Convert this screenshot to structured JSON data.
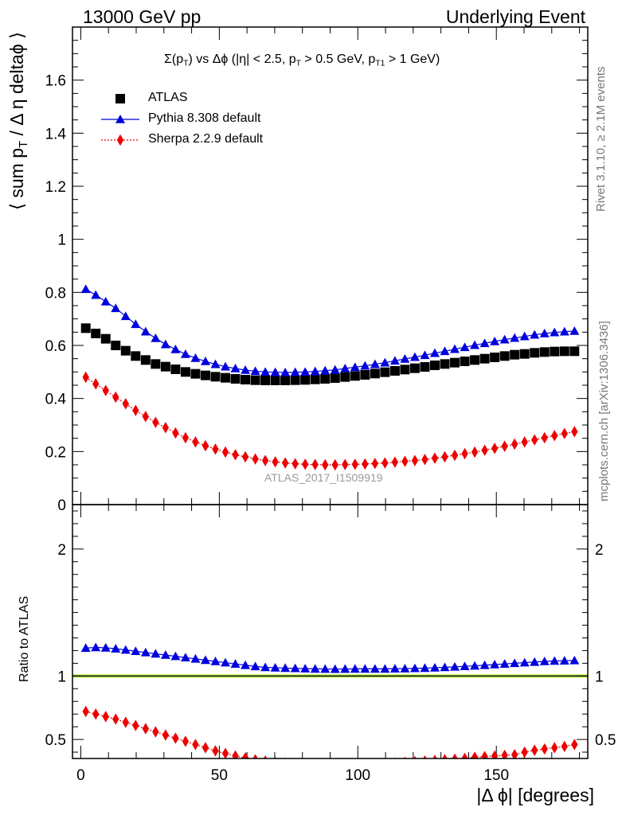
{
  "header": {
    "left": "13000 GeV pp",
    "right": "Underlying Event"
  },
  "side_labels": {
    "rivet": "Rivet 3.1.10, ≥ 2.1M events",
    "mcplots": "mcplots.cern.ch [arXiv:1306.3436]"
  },
  "watermark": "ATLAS_2017_I1509919",
  "upper_ylabel": {
    "main": "⟨ sum p",
    "sub": "T",
    "rest": " / Δ η deltaϕ ⟩"
  },
  "title": {
    "a": "Σ(p",
    "a_sub": "T",
    "b": ") vs Δϕ (|η| < 2.5, p",
    "b_sub": "T",
    "c": " > 0.5 GeV, p",
    "c_sub": "T1",
    "d": " > 1 GeV)"
  },
  "lower_ylabel": "Ratio to ATLAS",
  "xlabel": "|Δ ϕ| [degrees]",
  "chart_data": [
    {
      "type": "scatter",
      "xlim": [
        -3,
        183
      ],
      "ylim": [
        0,
        1.8
      ],
      "yticks": [
        {
          "v": 0,
          "label": "0"
        },
        {
          "v": 0.2,
          "label": "0.2"
        },
        {
          "v": 0.4,
          "label": "0.4"
        },
        {
          "v": 0.6,
          "label": "0.6"
        },
        {
          "v": 0.8,
          "label": "0.8"
        },
        {
          "v": 1,
          "label": "1"
        },
        {
          "v": 1.2,
          "label": "1.2"
        },
        {
          "v": 1.4,
          "label": "1.4"
        },
        {
          "v": 1.6,
          "label": "1.6"
        }
      ],
      "legend_position": "top-left",
      "x": [
        1.8,
        5.4,
        9,
        12.6,
        16.2,
        19.8,
        23.4,
        27,
        30.6,
        34.2,
        37.8,
        41.4,
        45,
        48.6,
        52.2,
        55.8,
        59.4,
        63,
        66.6,
        70.2,
        73.8,
        77.4,
        81,
        84.6,
        88.2,
        91.8,
        95.4,
        99,
        102.6,
        106.2,
        109.8,
        113.4,
        117,
        120.6,
        124.2,
        127.8,
        131.4,
        135,
        138.6,
        142.2,
        145.8,
        149.4,
        153,
        156.6,
        160.2,
        163.8,
        167.4,
        171,
        174.6,
        178.2
      ],
      "series": [
        {
          "name": "ATLAS",
          "color": "#000000",
          "marker": "square",
          "values": [
            0.665,
            0.645,
            0.625,
            0.6,
            0.58,
            0.56,
            0.545,
            0.53,
            0.52,
            0.51,
            0.5,
            0.493,
            0.487,
            0.482,
            0.478,
            0.474,
            0.471,
            0.469,
            0.468,
            0.468,
            0.468,
            0.469,
            0.47,
            0.472,
            0.474,
            0.477,
            0.481,
            0.485,
            0.489,
            0.494,
            0.499,
            0.504,
            0.509,
            0.514,
            0.519,
            0.525,
            0.53,
            0.535,
            0.54,
            0.545,
            0.55,
            0.555,
            0.56,
            0.565,
            0.568,
            0.572,
            0.575,
            0.577,
            0.578,
            0.578
          ]
        },
        {
          "name": "Pythia 8.308 default",
          "color": "#0000dd",
          "marker": "triangle",
          "values": [
            0.812,
            0.79,
            0.765,
            0.74,
            0.71,
            0.68,
            0.652,
            0.627,
            0.604,
            0.585,
            0.567,
            0.552,
            0.54,
            0.529,
            0.52,
            0.513,
            0.507,
            0.503,
            0.5,
            0.499,
            0.498,
            0.499,
            0.5,
            0.502,
            0.505,
            0.508,
            0.513,
            0.518,
            0.523,
            0.529,
            0.535,
            0.542,
            0.549,
            0.556,
            0.563,
            0.571,
            0.578,
            0.586,
            0.593,
            0.601,
            0.608,
            0.615,
            0.622,
            0.628,
            0.634,
            0.64,
            0.645,
            0.649,
            0.652,
            0.654
          ]
        },
        {
          "name": "Sherpa 2.2.9 default",
          "color": "#ee0000",
          "marker": "diamond",
          "values": [
            0.48,
            0.455,
            0.43,
            0.405,
            0.38,
            0.355,
            0.332,
            0.31,
            0.29,
            0.27,
            0.252,
            0.236,
            0.222,
            0.209,
            0.198,
            0.188,
            0.18,
            0.172,
            0.166,
            0.161,
            0.157,
            0.154,
            0.152,
            0.151,
            0.15,
            0.15,
            0.151,
            0.152,
            0.153,
            0.155,
            0.157,
            0.16,
            0.163,
            0.166,
            0.17,
            0.175,
            0.18,
            0.186,
            0.192,
            0.198,
            0.205,
            0.212,
            0.22,
            0.228,
            0.236,
            0.244,
            0.252,
            0.26,
            0.268,
            0.275
          ]
        }
      ]
    },
    {
      "type": "scatter",
      "xlim": [
        -3,
        183
      ],
      "ylim": [
        0.35,
        2.35
      ],
      "ylabel": "Ratio to ATLAS",
      "xlabel": "|Δ ϕ| [degrees]",
      "yticks": [
        {
          "v": 0.5,
          "label": "0.5"
        },
        {
          "v": 1,
          "label": "1"
        },
        {
          "v": 2,
          "label": "2"
        }
      ],
      "xticks": [
        {
          "v": 0,
          "label": "0"
        },
        {
          "v": 50,
          "label": "50"
        },
        {
          "v": 100,
          "label": "100"
        },
        {
          "v": 150,
          "label": "150"
        }
      ],
      "reference_line": 1,
      "reference_band": [
        0.985,
        1.015
      ],
      "band_color": "#ccff66",
      "x": [
        1.8,
        5.4,
        9,
        12.6,
        16.2,
        19.8,
        23.4,
        27,
        30.6,
        34.2,
        37.8,
        41.4,
        45,
        48.6,
        52.2,
        55.8,
        59.4,
        63,
        66.6,
        70.2,
        73.8,
        77.4,
        81,
        84.6,
        88.2,
        91.8,
        95.4,
        99,
        102.6,
        106.2,
        109.8,
        113.4,
        117,
        120.6,
        124.2,
        127.8,
        131.4,
        135,
        138.6,
        142.2,
        145.8,
        149.4,
        153,
        156.6,
        160.2,
        163.8,
        167.4,
        171,
        174.6,
        178.2
      ],
      "series": [
        {
          "name": "Pythia 8.308 default",
          "color": "#0000dd",
          "marker": "triangle",
          "values": [
            1.22,
            1.225,
            1.222,
            1.215,
            1.205,
            1.195,
            1.185,
            1.175,
            1.165,
            1.155,
            1.145,
            1.135,
            1.125,
            1.115,
            1.105,
            1.095,
            1.085,
            1.075,
            1.068,
            1.065,
            1.062,
            1.06,
            1.058,
            1.056,
            1.055,
            1.054,
            1.055,
            1.056,
            1.056,
            1.056,
            1.056,
            1.057,
            1.058,
            1.06,
            1.062,
            1.065,
            1.068,
            1.072,
            1.076,
            1.08,
            1.085,
            1.09,
            1.095,
            1.1,
            1.105,
            1.11,
            1.115,
            1.118,
            1.12,
            1.122
          ]
        },
        {
          "name": "Sherpa 2.2.9 default",
          "color": "#ee0000",
          "marker": "diamond",
          "values": [
            0.72,
            0.7,
            0.68,
            0.66,
            0.635,
            0.61,
            0.585,
            0.56,
            0.535,
            0.51,
            0.485,
            0.46,
            0.435,
            0.41,
            0.39,
            0.37,
            0.355,
            0.34,
            0.33,
            0.32,
            0.315,
            0.31,
            0.31,
            0.31,
            0.31,
            0.31,
            0.31,
            0.31,
            0.31,
            0.31,
            0.31,
            0.315,
            0.32,
            0.325,
            0.33,
            0.335,
            0.34,
            0.345,
            0.35,
            0.36,
            0.365,
            0.37,
            0.375,
            0.38,
            0.4,
            0.415,
            0.425,
            0.435,
            0.445,
            0.46
          ]
        }
      ]
    }
  ]
}
